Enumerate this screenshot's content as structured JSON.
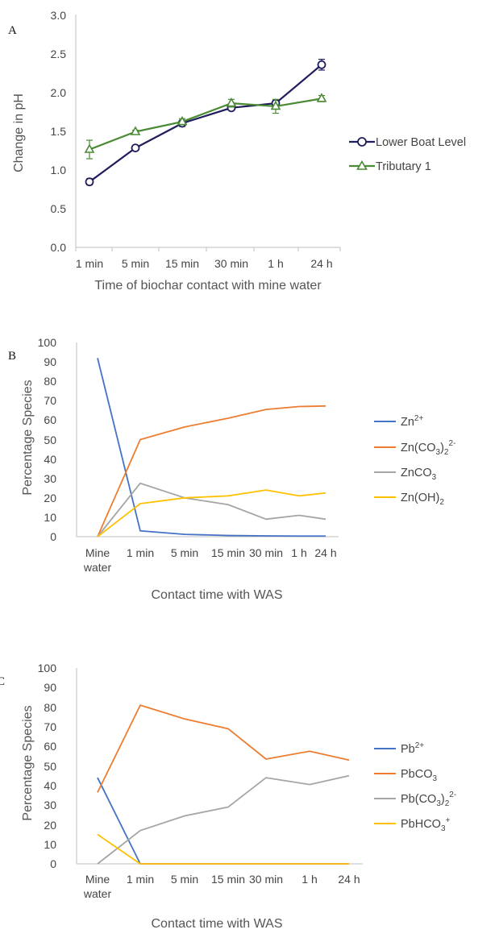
{
  "chart_data": [
    {
      "panel": "A",
      "type": "line",
      "categories": [
        "1 min",
        "5 min",
        "15 min",
        "30 min",
        "1 h",
        "24 h"
      ],
      "xlabel": "Time of biochar contact with mine water",
      "ylabel": "Change in pH",
      "ylim": [
        0,
        3.0
      ],
      "yticks": [
        "0.0",
        "0.5",
        "1.0",
        "1.5",
        "2.0",
        "2.5",
        "3.0"
      ],
      "grid": false,
      "legend_position": "right",
      "series": [
        {
          "name": "Lower Boat Level",
          "color": "#1f1d5c",
          "marker": "circle",
          "values": [
            0.85,
            1.29,
            1.61,
            1.81,
            1.87,
            2.37
          ],
          "errors": [
            0.04,
            0.03,
            0.04,
            0.03,
            0.04,
            0.07
          ]
        },
        {
          "name": "Tributary 1",
          "color": "#4a8a34",
          "marker": "triangle",
          "values": [
            1.27,
            1.5,
            1.63,
            1.87,
            1.83,
            1.93
          ],
          "errors": [
            0.12,
            0.02,
            0.04,
            0.05,
            0.09,
            0.04
          ]
        }
      ]
    },
    {
      "panel": "B",
      "type": "line",
      "categories": [
        "Mine water",
        "1 min",
        "5 min",
        "15 min",
        "30 min",
        "1 h",
        "24 h"
      ],
      "xlabel": "Contact time with WAS",
      "ylabel": "Percentage Species",
      "ylim": [
        0,
        100
      ],
      "yticks": [
        "0",
        "10",
        "20",
        "30",
        "40",
        "50",
        "60",
        "70",
        "80",
        "90",
        "100"
      ],
      "grid": false,
      "legend_position": "right",
      "series": [
        {
          "name": "Zn2+",
          "color": "#4472c4",
          "values": [
            92,
            3,
            1.2,
            0.6,
            0.4,
            0.3,
            0.3
          ]
        },
        {
          "name": "Zn(CO3)22-",
          "color": "#ed7d31",
          "values": [
            0,
            50,
            56.5,
            61,
            65.5,
            67,
            67.3
          ]
        },
        {
          "name": "ZnCO3",
          "color": "#a5a5a5",
          "values": [
            0,
            27.5,
            20,
            16.5,
            9,
            11,
            9
          ]
        },
        {
          "name": "Zn(OH)2",
          "color": "#ffc000",
          "values": [
            0,
            17,
            20,
            21,
            24,
            21,
            22.5
          ]
        }
      ]
    },
    {
      "panel": "C",
      "type": "line",
      "categories": [
        "Mine water",
        "1 min",
        "5 min",
        "15 min",
        "30 min",
        "1 h",
        "24 h"
      ],
      "xlabel": "Contact time with WAS",
      "ylabel": "Percentage Species",
      "ylim": [
        0,
        100
      ],
      "yticks": [
        "0",
        "10",
        "20",
        "30",
        "40",
        "50",
        "60",
        "70",
        "80",
        "90",
        "100"
      ],
      "grid": false,
      "legend_position": "right",
      "series": [
        {
          "name": "Pb2+",
          "color": "#4472c4",
          "values": [
            44,
            0,
            0,
            0,
            0,
            0,
            0
          ]
        },
        {
          "name": "PbCO3",
          "color": "#ed7d31",
          "values": [
            36.5,
            81,
            74,
            69,
            53.5,
            57.5,
            53
          ]
        },
        {
          "name": "Pb(CO3)22-",
          "color": "#a5a5a5",
          "values": [
            0,
            17,
            24.5,
            29,
            44,
            40.5,
            45
          ]
        },
        {
          "name": "PbHCO3+",
          "color": "#ffc000",
          "values": [
            15,
            0,
            0,
            0,
            0,
            0,
            0
          ]
        }
      ]
    }
  ],
  "panel_letters": {
    "a": "A",
    "b": "B",
    "c": "C"
  },
  "panel_a": {
    "yticks": [
      "0.0",
      "0.5",
      "1.0",
      "1.5",
      "2.0",
      "2.5",
      "3.0"
    ],
    "xticks": [
      "1 min",
      "5 min",
      "15 min",
      "30 min",
      "1 h",
      "24 h"
    ],
    "ylabel": "Change in pH",
    "xlabel": "Time of biochar contact with mine water",
    "legend": [
      "Lower Boat Level",
      "Tributary 1"
    ]
  },
  "panel_b": {
    "yticks": [
      "0",
      "10",
      "20",
      "30",
      "40",
      "50",
      "60",
      "70",
      "80",
      "90",
      "100"
    ],
    "xticks_line1": [
      "Mine",
      "1 min",
      "5 min",
      "15 min",
      "30 min",
      "1 h",
      "24 h"
    ],
    "xticks_line2": "water",
    "ylabel": "Percentage Species",
    "xlabel": "Contact time with WAS",
    "legend": [
      {
        "base": "Zn",
        "sup": "2+"
      },
      {
        "base": "Zn(CO",
        "sub": "3",
        "mid": ")",
        "sub2": "2",
        "sup": "2-"
      },
      {
        "base": "ZnCO",
        "sub": "3"
      },
      {
        "base": "Zn(OH)",
        "sub": "2"
      }
    ]
  },
  "panel_c": {
    "yticks": [
      "0",
      "10",
      "20",
      "30",
      "40",
      "50",
      "60",
      "70",
      "80",
      "90",
      "100"
    ],
    "xticks_line1": [
      "Mine",
      "1 min",
      "5 min",
      "15 min",
      "30 min",
      "1 h",
      "24 h"
    ],
    "xticks_line2": "water",
    "ylabel": "Percentage Species",
    "xlabel": "Contact time with WAS",
    "legend": [
      {
        "base": "Pb",
        "sup": "2+"
      },
      {
        "base": "PbCO",
        "sub": "3"
      },
      {
        "base": "Pb(CO",
        "sub": "3",
        "mid": ")",
        "sub2": "2",
        "sup": "2-"
      },
      {
        "base": "PbHCO",
        "sub": "3",
        "sup": "+"
      }
    ]
  }
}
